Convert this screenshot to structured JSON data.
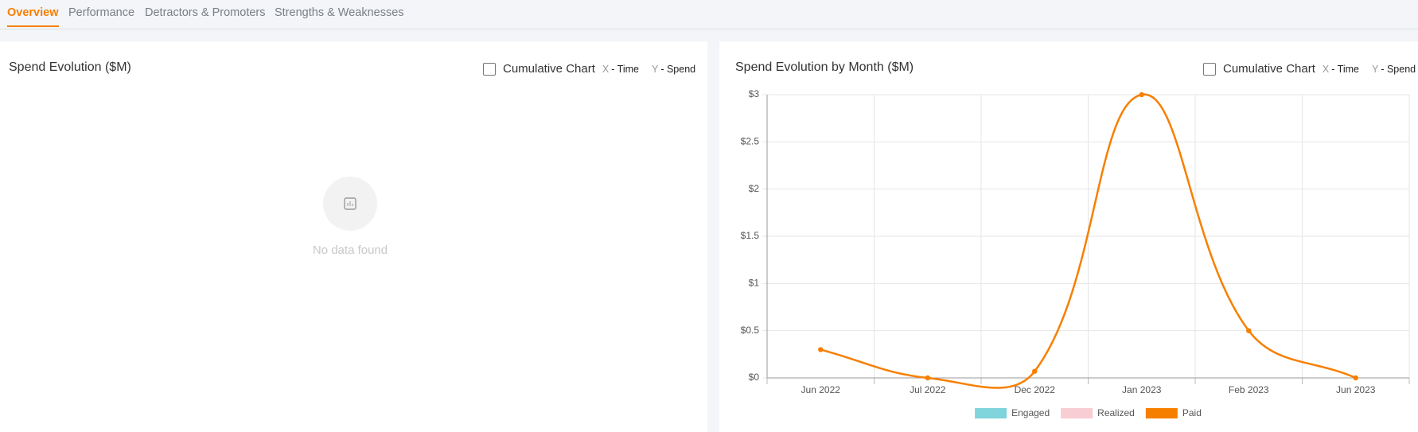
{
  "tabs": [
    "Overview",
    "Performance",
    "Detractors & Promoters",
    "Strengths & Weaknesses"
  ],
  "panels": [
    {
      "title": "Spend Evolution ($M)",
      "checkbox": "Cumulative Chart",
      "x_key": "X",
      "x_axis": "- Time",
      "y_key": "Y",
      "y_axis": "- Spend",
      "empty": "No data found"
    },
    {
      "title": "Spend Evolution by Month ($M)",
      "checkbox": "Cumulative Chart",
      "x_key": "X",
      "x_axis": "- Time",
      "y_key": "Y",
      "y_axis": "- Spend"
    }
  ],
  "chart_data": {
    "type": "line",
    "categories": [
      "Jun 2022",
      "Jul 2022",
      "Dec 2022",
      "Jan 2023",
      "Feb 2023",
      "Jun 2023"
    ],
    "series": [
      {
        "name": "Engaged",
        "color": "#7fd3da",
        "values": [
          null,
          null,
          null,
          null,
          null,
          null
        ]
      },
      {
        "name": "Realized",
        "color": "#f8cdd4",
        "values": [
          null,
          null,
          null,
          null,
          null,
          null
        ]
      },
      {
        "name": "Paid",
        "color": "#f77f00",
        "values": [
          0.3,
          0,
          0.07,
          3,
          0.5,
          0
        ]
      }
    ],
    "ylim": [
      0,
      3
    ],
    "yticks": [
      {
        "value": 0,
        "label": "$0"
      },
      {
        "value": 0.5,
        "label": "$0.5"
      },
      {
        "value": 1,
        "label": "$1"
      },
      {
        "value": 1.5,
        "label": "$1.5"
      },
      {
        "value": 2,
        "label": "$2"
      },
      {
        "value": 2.5,
        "label": "$2.5"
      },
      {
        "value": 3,
        "label": "$3"
      }
    ],
    "grid": true,
    "legend": "bottom"
  }
}
